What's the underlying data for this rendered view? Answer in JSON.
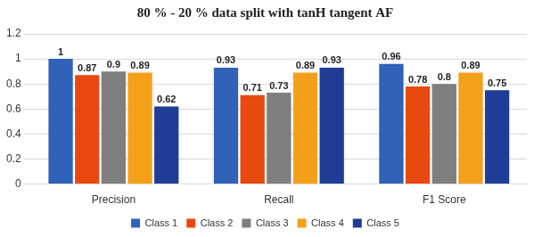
{
  "chart_data": {
    "type": "bar",
    "title": "80 % - 20 % data split with tanH tangent AF",
    "categories": [
      "Precision",
      "Recall",
      "F1 Score"
    ],
    "series": [
      {
        "name": "Class 1",
        "color": "#2f62b8",
        "values": [
          1,
          0.93,
          0.96
        ]
      },
      {
        "name": "Class 2",
        "color": "#e8490f",
        "values": [
          0.87,
          0.71,
          0.78
        ]
      },
      {
        "name": "Class 3",
        "color": "#7f7f7f",
        "values": [
          0.9,
          0.73,
          0.8
        ]
      },
      {
        "name": "Class 4",
        "color": "#f5a01a",
        "values": [
          0.89,
          0.89,
          0.89
        ]
      },
      {
        "name": "Class 5",
        "color": "#1f3c96",
        "values": [
          0.62,
          0.93,
          0.75
        ]
      }
    ],
    "ylim": [
      0,
      1.2
    ],
    "yticks": [
      0,
      0.2,
      0.4,
      0.6,
      0.8,
      1,
      1.2
    ],
    "grid": true,
    "legend": "bottom",
    "data_labels": true
  }
}
